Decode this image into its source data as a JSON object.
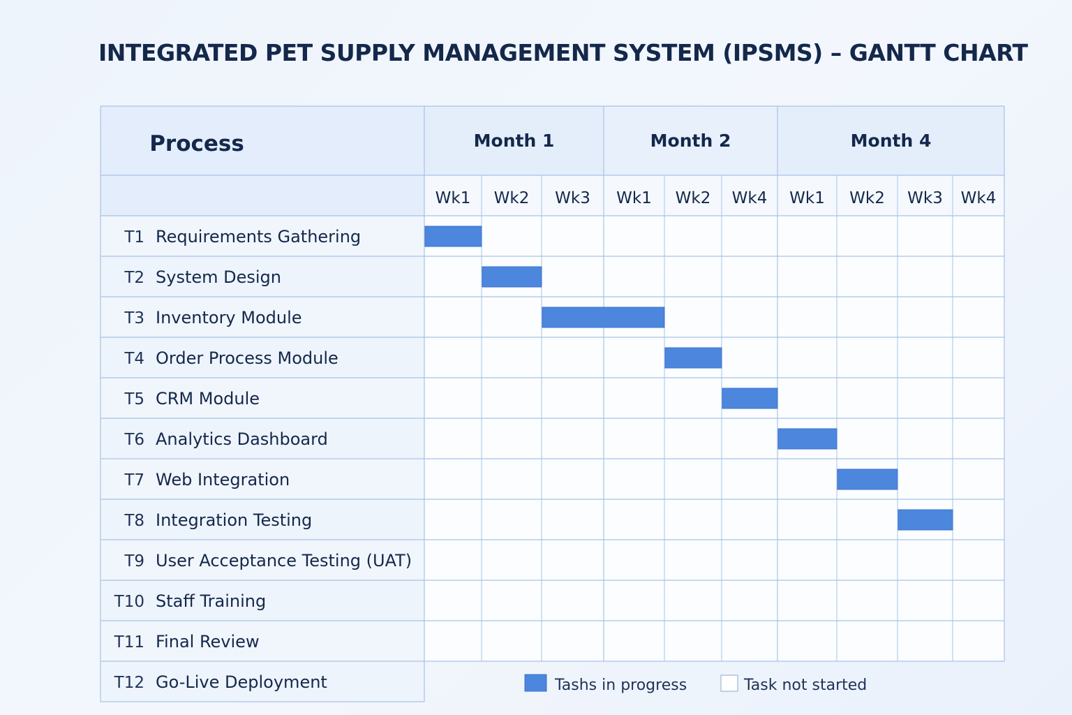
{
  "colors": {
    "bar": "#4c86dd",
    "bar_border": "#3b74cc",
    "grid": "#a9c2e6",
    "header_bg": "#e3edfb",
    "cell_bg": "#fbfdff",
    "text": "#14284b"
  },
  "chart_data": {
    "type": "gantt",
    "title": "INTEGRATED PET SUPPLY MANAGEMENT SYSTEM (IPSMS) – GANTT CHART",
    "process_header": "Process",
    "months": [
      {
        "label": "Month 1",
        "weeks": [
          "Wk1",
          "Wk2",
          "Wk3"
        ]
      },
      {
        "label": "Month 2",
        "weeks": [
          "Wk1",
          "Wk2",
          "Wk4"
        ]
      },
      {
        "label": "Month 4",
        "weeks": [
          "Wk1",
          "Wk2",
          "Wk3",
          "Wk4"
        ]
      }
    ],
    "tasks": [
      {
        "id": "T1",
        "name": "Requirements Gathering",
        "start_week": 0,
        "span_weeks": 1
      },
      {
        "id": "T2",
        "name": "System Design",
        "start_week": 1,
        "span_weeks": 1
      },
      {
        "id": "T3",
        "name": "Inventory Module",
        "start_week": 2,
        "span_weeks": 2
      },
      {
        "id": "T4",
        "name": "Order Process Module",
        "start_week": 4,
        "span_weeks": 1
      },
      {
        "id": "T5",
        "name": "CRM Module",
        "start_week": 5,
        "span_weeks": 1
      },
      {
        "id": "T6",
        "name": "Analytics Dashboard",
        "start_week": 6,
        "span_weeks": 1
      },
      {
        "id": "T7",
        "name": "Web Integration",
        "start_week": 7,
        "span_weeks": 1
      },
      {
        "id": "T8",
        "name": "Integration Testing",
        "start_week": 8,
        "span_weeks": 1
      },
      {
        "id": "T9",
        "name": "User Acceptance Testing (UAT)",
        "start_week": null,
        "span_weeks": 0
      },
      {
        "id": "T10",
        "name": "Staff Training",
        "start_week": null,
        "span_weeks": 0
      },
      {
        "id": "T11",
        "name": "Final Review",
        "start_week": null,
        "span_weeks": 0
      },
      {
        "id": "T12",
        "name": "Go-Live Deployment",
        "start_week": null,
        "span_weeks": 0
      }
    ],
    "legend": [
      {
        "label": "Tashs in progress",
        "style": "filled"
      },
      {
        "label": "Task not started",
        "style": "empty"
      }
    ]
  }
}
